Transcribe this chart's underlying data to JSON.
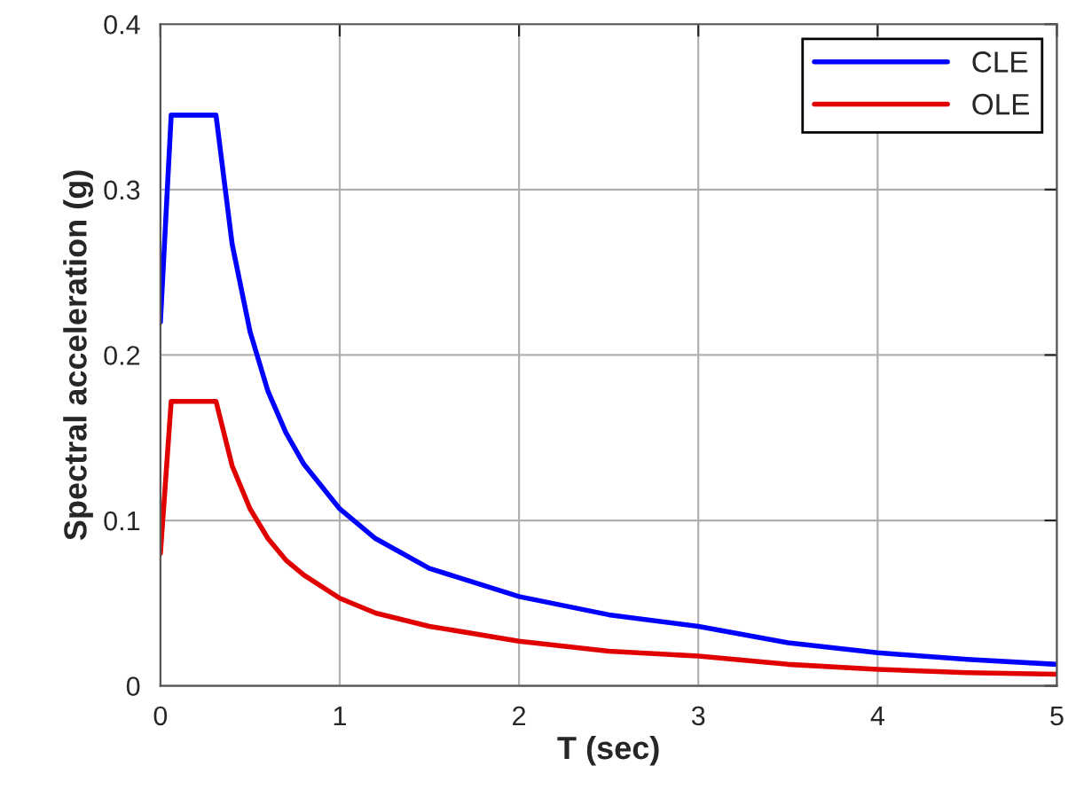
{
  "chart_data": {
    "type": "line",
    "xlabel": "T (sec)",
    "ylabel": "Spectral acceleration (g)",
    "x": [
      0,
      0.06,
      0.31,
      0.4,
      0.5,
      0.6,
      0.7,
      0.8,
      1.0,
      1.2,
      1.5,
      2.0,
      2.5,
      3.0,
      3.5,
      4.0,
      4.5,
      5.0
    ],
    "series": [
      {
        "name": "CLE",
        "color": "#0000ff",
        "values": [
          0.22,
          0.345,
          0.345,
          0.267,
          0.214,
          0.178,
          0.153,
          0.134,
          0.107,
          0.089,
          0.071,
          0.054,
          0.043,
          0.036,
          0.026,
          0.02,
          0.016,
          0.013
        ]
      },
      {
        "name": "OLE",
        "color": "#e00000",
        "values": [
          0.08,
          0.172,
          0.172,
          0.133,
          0.107,
          0.089,
          0.076,
          0.067,
          0.053,
          0.044,
          0.036,
          0.027,
          0.021,
          0.018,
          0.013,
          0.01,
          0.008,
          0.007
        ]
      }
    ],
    "xlim": [
      0,
      5
    ],
    "ylim": [
      0,
      0.4
    ],
    "xticks": [
      0,
      1,
      2,
      3,
      4,
      5
    ],
    "yticks": [
      0,
      0.1,
      0.2,
      0.3,
      0.4
    ],
    "grid": true,
    "legend": "top right",
    "marker": "none",
    "line_style": "solid"
  }
}
